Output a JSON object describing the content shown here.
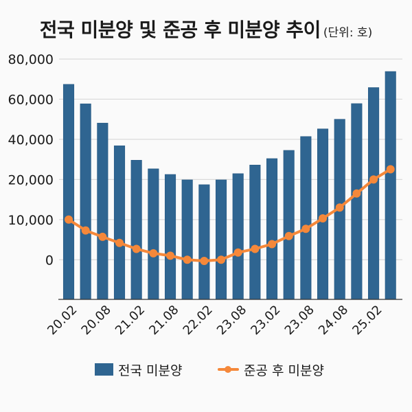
{
  "chart_data": {
    "type": "bar",
    "title": "전국 미분양 및 준공 후 미분양 추이",
    "subtitle": "(단위: 호)",
    "xlabel": "",
    "ylabel": "",
    "ytick_labels": [
      "80,000",
      "60,000",
      "40,000",
      "20,000",
      "10,000",
      "0"
    ],
    "ytick_values": [
      80000,
      60000,
      40000,
      20000,
      10000,
      0
    ],
    "xtick_labels": [
      "20.02",
      "20.08",
      "21.02",
      "21.08",
      "22.02",
      "23.08",
      "23.02",
      "23.08",
      "24.08",
      "25.02"
    ],
    "grid": true,
    "legend_position": "bottom-center",
    "series": [
      {
        "name": "전국 미분양",
        "type": "bar",
        "color": "#2f6591",
        "values": [
          67400,
          57700,
          48100,
          36800,
          29600,
          25300,
          22500,
          19900,
          18700,
          19900,
          22900,
          27200,
          30400,
          34500,
          41400,
          45200,
          50000,
          57800,
          65800,
          73800
        ]
      },
      {
        "name": "준공 후 미분양",
        "type": "line",
        "color": "#f5883a",
        "values": [
          10000,
          7300,
          5700,
          4200,
          2700,
          1600,
          1000,
          0,
          -300,
          0,
          1800,
          2700,
          3900,
          5900,
          7700,
          10300,
          13000,
          16500,
          20000,
          25100
        ]
      }
    ]
  }
}
